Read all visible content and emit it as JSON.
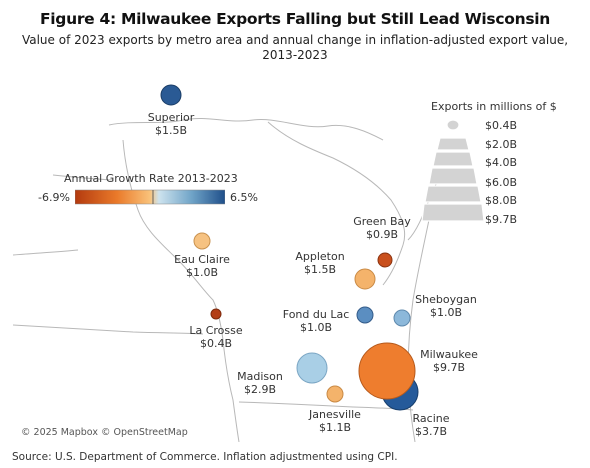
{
  "title": "Figure 4: Milwaukee Exports Falling but Still Lead Wisconsin",
  "subtitle": "Value of 2023 exports by metro area and annual change in inflation-adjusted export value, 2013-2023",
  "source": "Source: U.S. Department of Commerce. Inflation adjustmented using CPI.",
  "copyright": "© 2025 Mapbox © OpenStreetMap",
  "color_legend": {
    "title": "Annual Growth Rate 2013-2023",
    "min_label": "-6.9%",
    "max_label": "6.5%",
    "colors": [
      "#b33a0f",
      "#ea7a2a",
      "#f9c27a",
      "#cde3ee",
      "#6fa3c7",
      "#1f4f8a"
    ]
  },
  "size_legend": {
    "title": "Exports in millions of $",
    "values": [
      "$0.4B",
      "$2.0B",
      "$4.0B",
      "$6.0B",
      "$8.0B",
      "$9.7B"
    ],
    "shape_color": "#d3d3d3"
  },
  "cities": [
    {
      "name": "Superior",
      "value_label": "$1.5B",
      "color": "#2a5a94",
      "exports_b": 1.5
    },
    {
      "name": "Eau Claire",
      "value_label": "$1.0B",
      "color": "#f6c281",
      "exports_b": 1.0
    },
    {
      "name": "La Crosse",
      "value_label": "$0.4B",
      "color": "#b33e16",
      "exports_b": 0.4
    },
    {
      "name": "Green Bay",
      "value_label": "$0.9B",
      "color": "#c9501d",
      "exports_b": 0.9
    },
    {
      "name": "Appleton",
      "value_label": "$1.5B",
      "color": "#f4b36b",
      "exports_b": 1.5
    },
    {
      "name": "Fond du Lac",
      "value_label": "$1.0B",
      "color": "#5b8ec1",
      "exports_b": 1.0
    },
    {
      "name": "Sheboygan",
      "value_label": "$1.0B",
      "color": "#8cb8da",
      "exports_b": 1.0
    },
    {
      "name": "Milwaukee",
      "value_label": "$9.7B",
      "color": "#ee7d2e",
      "exports_b": 9.7
    },
    {
      "name": "Madison",
      "value_label": "$2.9B",
      "color": "#a9cfe6",
      "exports_b": 2.9
    },
    {
      "name": "Racine",
      "value_label": "$3.7B",
      "color": "#255a9a",
      "exports_b": 3.7
    },
    {
      "name": "Janesville",
      "value_label": "$1.1B",
      "color": "#f4b36b",
      "exports_b": 1.1
    }
  ]
}
